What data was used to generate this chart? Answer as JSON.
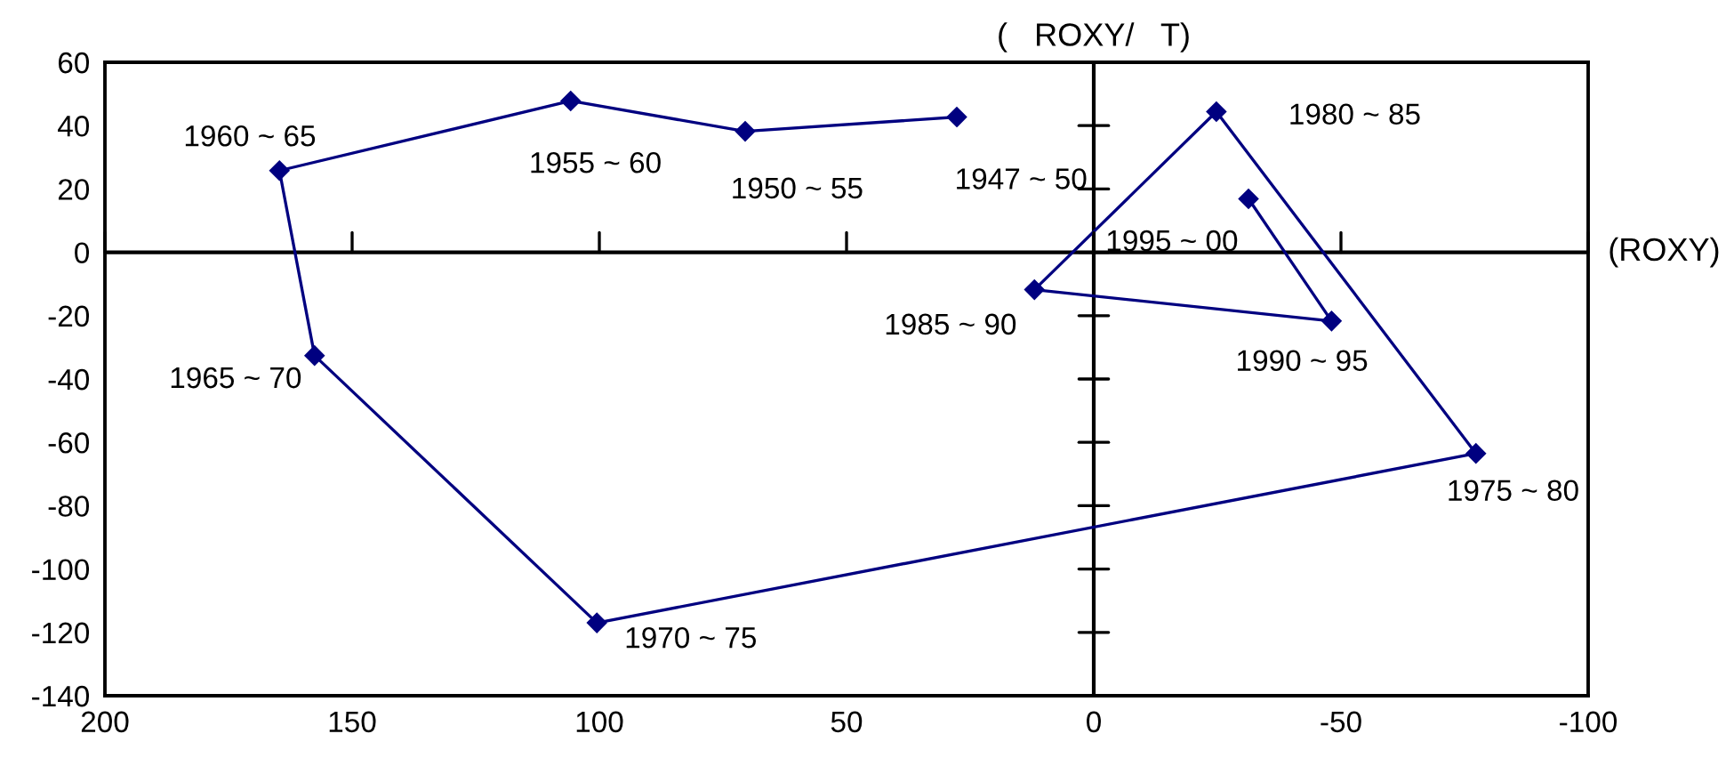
{
  "chart_data": {
    "type": "line",
    "series": [
      {
        "color": "#000080",
        "x": [
          27.7,
          70.5,
          105.8,
          164.7,
          157.6,
          100.5,
          -77.3,
          -24.8,
          12,
          -48.1,
          -31.3
        ],
        "values": [
          42.7,
          38.2,
          47.8,
          25.8,
          -32.6,
          -117,
          -63.5,
          44.4,
          -11.8,
          -21.7,
          16.9
        ]
      }
    ],
    "marker": "diamond",
    "line_style": "solid",
    "grid": false,
    "legend": false,
    "xlim": [
      200,
      -100
    ],
    "xticks": [
      200,
      150,
      100,
      50,
      0,
      -50,
      -100
    ],
    "ylim": [
      -140,
      60
    ],
    "yticks": [
      -140,
      -120,
      -100,
      -80,
      -60,
      -40,
      -20,
      0,
      20,
      40,
      60
    ],
    "ref_lines": [
      {
        "axis": "x",
        "value": 0,
        "label": "(   ROXY/   T)",
        "color": "#000000"
      },
      {
        "axis": "y",
        "value": 0,
        "label": "(ROXY)",
        "color": "#000000"
      }
    ],
    "annotations": [
      {
        "text": "1947 ~ 50",
        "x": 27.7,
        "y": 42.7
      },
      {
        "text": "1950 ~ 55",
        "x": 70.5,
        "y": 38.2
      },
      {
        "text": "1955 ~ 60",
        "x": 105.8,
        "y": 47.8
      },
      {
        "text": "1960 ~ 65",
        "x": 164.7,
        "y": 25.8
      },
      {
        "text": "1965 ~ 70",
        "x": 157.6,
        "y": -32.6
      },
      {
        "text": "1970 ~ 75",
        "x": 100.5,
        "y": -117
      },
      {
        "text": "1975 ~ 80",
        "x": -77.3,
        "y": -63.5
      },
      {
        "text": "1980 ~ 85",
        "x": -24.8,
        "y": 44.4
      },
      {
        "text": "1985 ~ 90",
        "x": 12,
        "y": -11.8
      },
      {
        "text": "1990 ~ 95",
        "x": -48.1,
        "y": -21.7
      },
      {
        "text": "1995 ~ 00",
        "x": -31.3,
        "y": 16.9
      }
    ]
  }
}
